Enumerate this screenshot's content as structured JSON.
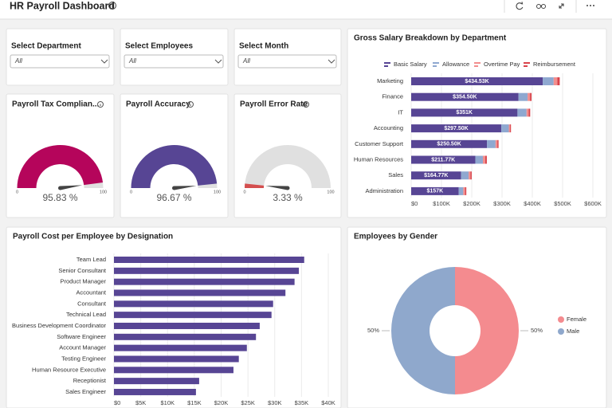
{
  "header": {
    "title": "HR Payroll Dashboard"
  },
  "filters": [
    {
      "label": "Select Department",
      "value": "All"
    },
    {
      "label": "Select Employees",
      "value": "All"
    },
    {
      "label": "Select Month",
      "value": "All"
    }
  ],
  "chart_data": [
    {
      "type": "gauge",
      "title": "Payroll Tax Complian...",
      "value": 95.83,
      "value_label": "95.83 %",
      "ylim": [
        0,
        100
      ],
      "yticks": [
        0,
        100
      ],
      "color": "#b5055b",
      "track_color": "#e0e0e0"
    },
    {
      "type": "gauge",
      "title": "Payroll Accuracy",
      "value": 96.67,
      "value_label": "96.67 %",
      "ylim": [
        0,
        100
      ],
      "yticks": [
        0,
        100
      ],
      "color": "#574594",
      "track_color": "#e0e0e0"
    },
    {
      "type": "gauge",
      "title": "Payroll Error Rate",
      "value": 3.33,
      "value_label": "3.33 %",
      "ylim": [
        0,
        100
      ],
      "yticks": [
        0,
        100
      ],
      "color": "#d44f4f",
      "track_color": "#e0e0e0"
    },
    {
      "type": "bar",
      "orientation": "horizontal",
      "stacked": true,
      "title": "Gross Salary Breakdown by Department",
      "categories": [
        "Marketing",
        "Finance",
        "IT",
        "Accounting",
        "Customer Support",
        "Human Resources",
        "Sales",
        "Administration"
      ],
      "series": [
        {
          "name": "Basic Salary",
          "color": "#574594",
          "values": [
            434530,
            354500,
            351000,
            297500,
            250500,
            211770,
            164770,
            157000
          ],
          "value_labels": [
            "$434.53K",
            "$354.50K",
            "$351K",
            "$297.50K",
            "$250.50K",
            "$211.77K",
            "$164.77K",
            "$157K"
          ]
        },
        {
          "name": "Allowance",
          "color": "#8fa8d0",
          "values": [
            36000,
            30000,
            30000,
            25000,
            28000,
            25000,
            25000,
            15000
          ]
        },
        {
          "name": "Overtime Pay",
          "color": "#f28e8e",
          "values": [
            12000,
            8000,
            7000,
            4000,
            6000,
            8000,
            6000,
            6000
          ]
        },
        {
          "name": "Reimbursement",
          "color": "#d9434b",
          "values": [
            8000,
            5000,
            5000,
            3000,
            4000,
            5000,
            4000,
            4000
          ]
        }
      ],
      "xlim": [
        0,
        600000
      ],
      "xticks": [
        {
          "value": 0,
          "label": "$0"
        },
        {
          "value": 100000,
          "label": "$100K"
        },
        {
          "value": 200000,
          "label": "$200K"
        },
        {
          "value": 300000,
          "label": "$300K"
        },
        {
          "value": 400000,
          "label": "$400K"
        },
        {
          "value": 500000,
          "label": "$500K"
        },
        {
          "value": 600000,
          "label": "$600K"
        }
      ],
      "grid": true,
      "legend": "top"
    },
    {
      "type": "bar",
      "orientation": "horizontal",
      "title": "Payroll Cost per Employee by Designation",
      "categories": [
        "Team Lead",
        "Senior Consultant",
        "Product Manager",
        "Accountant",
        "Consultant",
        "Technical Lead",
        "Business Development Coordinator",
        "Software Engineer",
        "Account Manager",
        "Testing Engineer",
        "Human Resource Executive",
        "Receptionist",
        "Sales Engineer"
      ],
      "values": [
        35500,
        34500,
        33700,
        32000,
        29700,
        29400,
        27200,
        26500,
        24800,
        23300,
        22300,
        15900,
        15300
      ],
      "color": "#574594",
      "xlim": [
        0,
        40000
      ],
      "xticks": [
        {
          "value": 0,
          "label": "$0"
        },
        {
          "value": 5000,
          "label": "$5K"
        },
        {
          "value": 10000,
          "label": "$10K"
        },
        {
          "value": 15000,
          "label": "$15K"
        },
        {
          "value": 20000,
          "label": "$20K"
        },
        {
          "value": 25000,
          "label": "$25K"
        },
        {
          "value": 30000,
          "label": "$30K"
        },
        {
          "value": 35000,
          "label": "$35K"
        },
        {
          "value": 40000,
          "label": "$40K"
        }
      ],
      "grid": true
    },
    {
      "type": "pie",
      "donut": true,
      "title": "Employees by Gender",
      "categories": [
        "Female",
        "Male"
      ],
      "values": [
        50,
        50
      ],
      "value_labels": [
        "50%",
        "50%"
      ],
      "colors": [
        "#f48b8f",
        "#8fa8cc"
      ],
      "legend": "right"
    }
  ]
}
